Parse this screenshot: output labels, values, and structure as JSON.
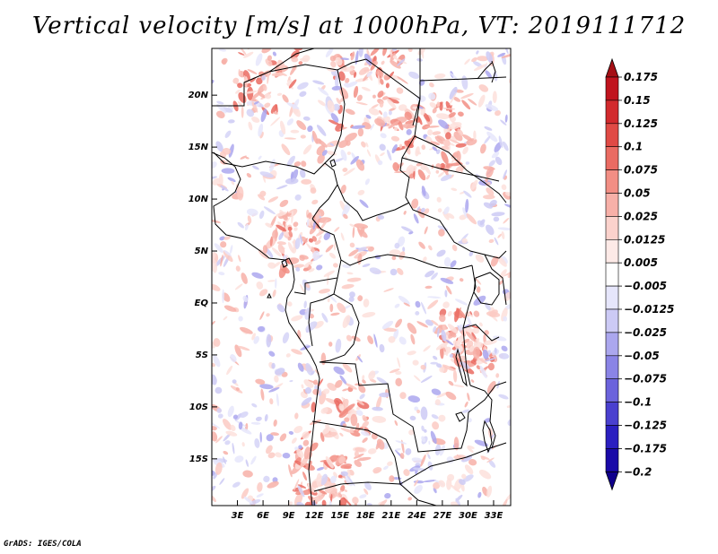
{
  "title": "Vertical velocity [m/s] at 1000hPa, VT: 2019111712",
  "footer": "GrADS: IGES/COLA",
  "map": {
    "lat_labels": [
      "20N",
      "15N",
      "10N",
      "5N",
      "EQ",
      "5S",
      "10S",
      "15S"
    ],
    "lat_values": [
      20,
      15,
      10,
      5,
      0,
      -5,
      -10,
      -15
    ],
    "lon_labels": [
      "3E",
      "6E",
      "9E",
      "12E",
      "15E",
      "18E",
      "21E",
      "24E",
      "27E",
      "30E",
      "33E"
    ],
    "lon_values": [
      3,
      6,
      9,
      12,
      15,
      18,
      21,
      24,
      27,
      30,
      33
    ],
    "lon_range": [
      0,
      35
    ],
    "lat_range": [
      -19.5,
      24.5
    ],
    "field": "vertical velocity",
    "units": "m/s",
    "level": "1000hPa",
    "valid_time": "2019111712"
  },
  "colorbar": {
    "labels": [
      "0.175",
      "0.15",
      "0.125",
      "0.1",
      "0.075",
      "0.05",
      "0.025",
      "0.0125",
      "0.005",
      "−0.005",
      "−0.0125",
      "−0.025",
      "−0.05",
      "−0.075",
      "−0.1",
      "−0.125",
      "−0.175",
      "−0.2"
    ],
    "colors": [
      "#a50f15",
      "#c0141e",
      "#d22a2d",
      "#e04a45",
      "#ea6b62",
      "#f28e84",
      "#f7b0a8",
      "#fbd2cc",
      "#fdeae7",
      "#ffffff",
      "#e6e6fb",
      "#cccaf5",
      "#aba7ee",
      "#8a84e6",
      "#6b63dc",
      "#4a40cf",
      "#2b1fc0",
      "#1a0aa8",
      "#10008c"
    ]
  }
}
